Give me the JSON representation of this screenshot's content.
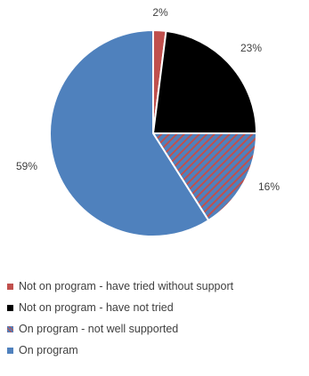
{
  "chart_data": {
    "type": "pie",
    "title": "",
    "categories": [
      "Not on program - have tried without support",
      "Not on program - have not tried",
      "On program - not well supported",
      "On program"
    ],
    "values": [
      2,
      23,
      16,
      59
    ],
    "labels": [
      "2%",
      "23%",
      "16%",
      "59%"
    ],
    "colors": [
      "#c0504d",
      "#000000",
      "#4f81bd",
      "#4f81bd"
    ],
    "patterns": [
      "solid",
      "solid",
      "diagonal-stripe-red-blue",
      "solid"
    ],
    "start_angle": "12 o'clock",
    "direction": "clockwise",
    "legend_position": "bottom"
  }
}
